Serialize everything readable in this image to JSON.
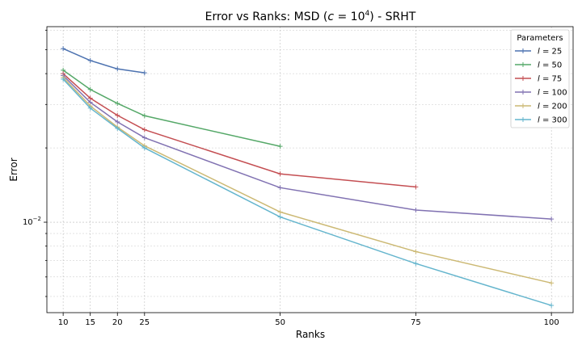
{
  "chart_data": {
    "type": "line",
    "title": "Error vs Ranks: MSD (c = 10^4) - SRHT",
    "title_parts": {
      "prefix": "Error vs Ranks: MSD (",
      "var": "c",
      "eq": " = 10",
      "exp": "4",
      "suffix": ") - SRHT"
    },
    "xlabel": "Ranks",
    "ylabel": "Error",
    "x": [
      10,
      15,
      20,
      25,
      50,
      75,
      100
    ],
    "x_ticks": [
      10,
      15,
      20,
      25,
      50,
      75,
      100
    ],
    "xlim": [
      7,
      104
    ],
    "y_scale": "log",
    "ylim": [
      0.0043,
      0.062
    ],
    "y_tick_labels": [
      {
        "value": 0.01,
        "base": "10",
        "exp": "−2"
      }
    ],
    "grid": true,
    "legend": {
      "title": "Parameters",
      "placement": "top-right"
    },
    "series": [
      {
        "name": "l = 25",
        "color": "#4c72b0",
        "x": [
          10,
          15,
          20,
          25
        ],
        "values": [
          0.0505,
          0.0452,
          0.0418,
          0.0403
        ]
      },
      {
        "name": "l = 50",
        "color": "#55a868",
        "x": [
          10,
          15,
          20,
          25,
          50
        ],
        "values": [
          0.0413,
          0.0345,
          0.0303,
          0.027,
          0.0203
        ]
      },
      {
        "name": "l = 75",
        "color": "#c44e52",
        "x": [
          10,
          15,
          20,
          25,
          50,
          75
        ],
        "values": [
          0.04,
          0.0318,
          0.0271,
          0.0237,
          0.0157,
          0.0139
        ]
      },
      {
        "name": "l = 100",
        "color": "#8172b2",
        "x": [
          10,
          15,
          20,
          25,
          50,
          75,
          100
        ],
        "values": [
          0.0393,
          0.0306,
          0.0255,
          0.022,
          0.0138,
          0.0112,
          0.0103
        ]
      },
      {
        "name": "l = 200",
        "color": "#ccb974",
        "x": [
          10,
          15,
          20,
          25,
          50,
          75,
          100
        ],
        "values": [
          0.0386,
          0.0296,
          0.0243,
          0.0204,
          0.011,
          0.0076,
          0.00567
        ]
      },
      {
        "name": "l = 300",
        "color": "#64b5cd",
        "x": [
          10,
          15,
          20,
          25,
          50,
          75,
          100
        ],
        "values": [
          0.038,
          0.029,
          0.024,
          0.02,
          0.0105,
          0.0068,
          0.0046
        ]
      }
    ]
  }
}
